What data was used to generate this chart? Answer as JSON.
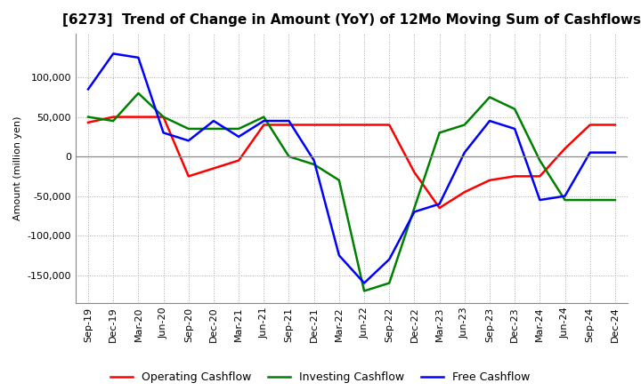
{
  "title": "[6273]  Trend of Change in Amount (YoY) of 12Mo Moving Sum of Cashflows",
  "ylabel": "Amount (million yen)",
  "labels": [
    "Sep-19",
    "Dec-19",
    "Mar-20",
    "Jun-20",
    "Sep-20",
    "Dec-20",
    "Mar-21",
    "Jun-21",
    "Sep-21",
    "Dec-21",
    "Mar-22",
    "Jun-22",
    "Sep-22",
    "Dec-22",
    "Mar-23",
    "Jun-23",
    "Sep-23",
    "Dec-23",
    "Mar-24",
    "Jun-24",
    "Sep-24",
    "Dec-24"
  ],
  "operating": [
    43000,
    50000,
    50000,
    50000,
    -25000,
    -15000,
    -5000,
    40000,
    40000,
    40000,
    40000,
    40000,
    40000,
    -20000,
    -65000,
    -45000,
    -30000,
    -25000,
    -25000,
    10000,
    40000,
    40000
  ],
  "investing": [
    50000,
    45000,
    80000,
    50000,
    35000,
    35000,
    35000,
    50000,
    0,
    -10000,
    -30000,
    -170000,
    -160000,
    -65000,
    30000,
    40000,
    75000,
    60000,
    -5000,
    -55000,
    -55000,
    -55000
  ],
  "free": [
    85000,
    130000,
    125000,
    30000,
    20000,
    45000,
    25000,
    45000,
    45000,
    -5000,
    -125000,
    -160000,
    -130000,
    -70000,
    -60000,
    5000,
    45000,
    35000,
    -55000,
    -50000,
    5000,
    5000
  ],
  "operating_color": "#FF0000",
  "investing_color": "#008000",
  "free_color": "#0000FF",
  "ylim": [
    -185000,
    155000
  ],
  "yticks": [
    -150000,
    -100000,
    -50000,
    0,
    50000,
    100000
  ],
  "grid_color": "#aaaaaa",
  "grid_style": "dotted",
  "background_color": "#ffffff",
  "title_fontsize": 11,
  "axis_fontsize": 8,
  "legend_fontsize": 9,
  "linewidth": 1.8
}
